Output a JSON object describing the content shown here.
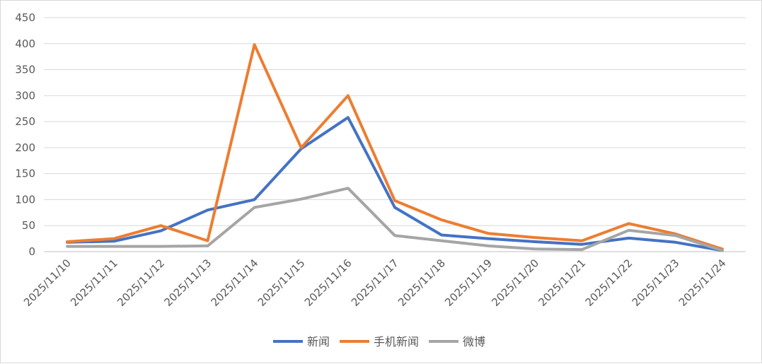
{
  "chart_data": {
    "type": "line",
    "title": "",
    "xlabel": "",
    "ylabel": "",
    "ylim": [
      0,
      450
    ],
    "yticks": [
      0,
      50,
      100,
      150,
      200,
      250,
      300,
      350,
      400,
      450
    ],
    "grid": "horizontal",
    "legend": "bottom",
    "categories": [
      "2025/11/10",
      "2025/11/11",
      "2025/11/12",
      "2025/11/13",
      "2025/11/14",
      "2025/11/15",
      "2025/11/16",
      "2025/11/17",
      "2025/11/18",
      "2025/11/19",
      "2025/11/20",
      "2025/11/21",
      "2025/11/22",
      "2025/11/23",
      "2025/11/24"
    ],
    "series": [
      {
        "name": "新闻",
        "color": "#4472C4",
        "values": [
          18,
          20,
          40,
          80,
          100,
          198,
          258,
          85,
          32,
          25,
          19,
          14,
          26,
          18,
          2
        ]
      },
      {
        "name": "手机新闻",
        "color": "#ED7D31",
        "values": [
          19,
          25,
          50,
          21,
          398,
          200,
          300,
          98,
          61,
          35,
          27,
          21,
          54,
          34,
          5
        ]
      },
      {
        "name": "微博",
        "color": "#A5A5A5",
        "values": [
          10,
          10,
          10,
          11,
          85,
          101,
          122,
          31,
          21,
          11,
          5,
          4,
          41,
          31,
          2
        ]
      }
    ]
  }
}
